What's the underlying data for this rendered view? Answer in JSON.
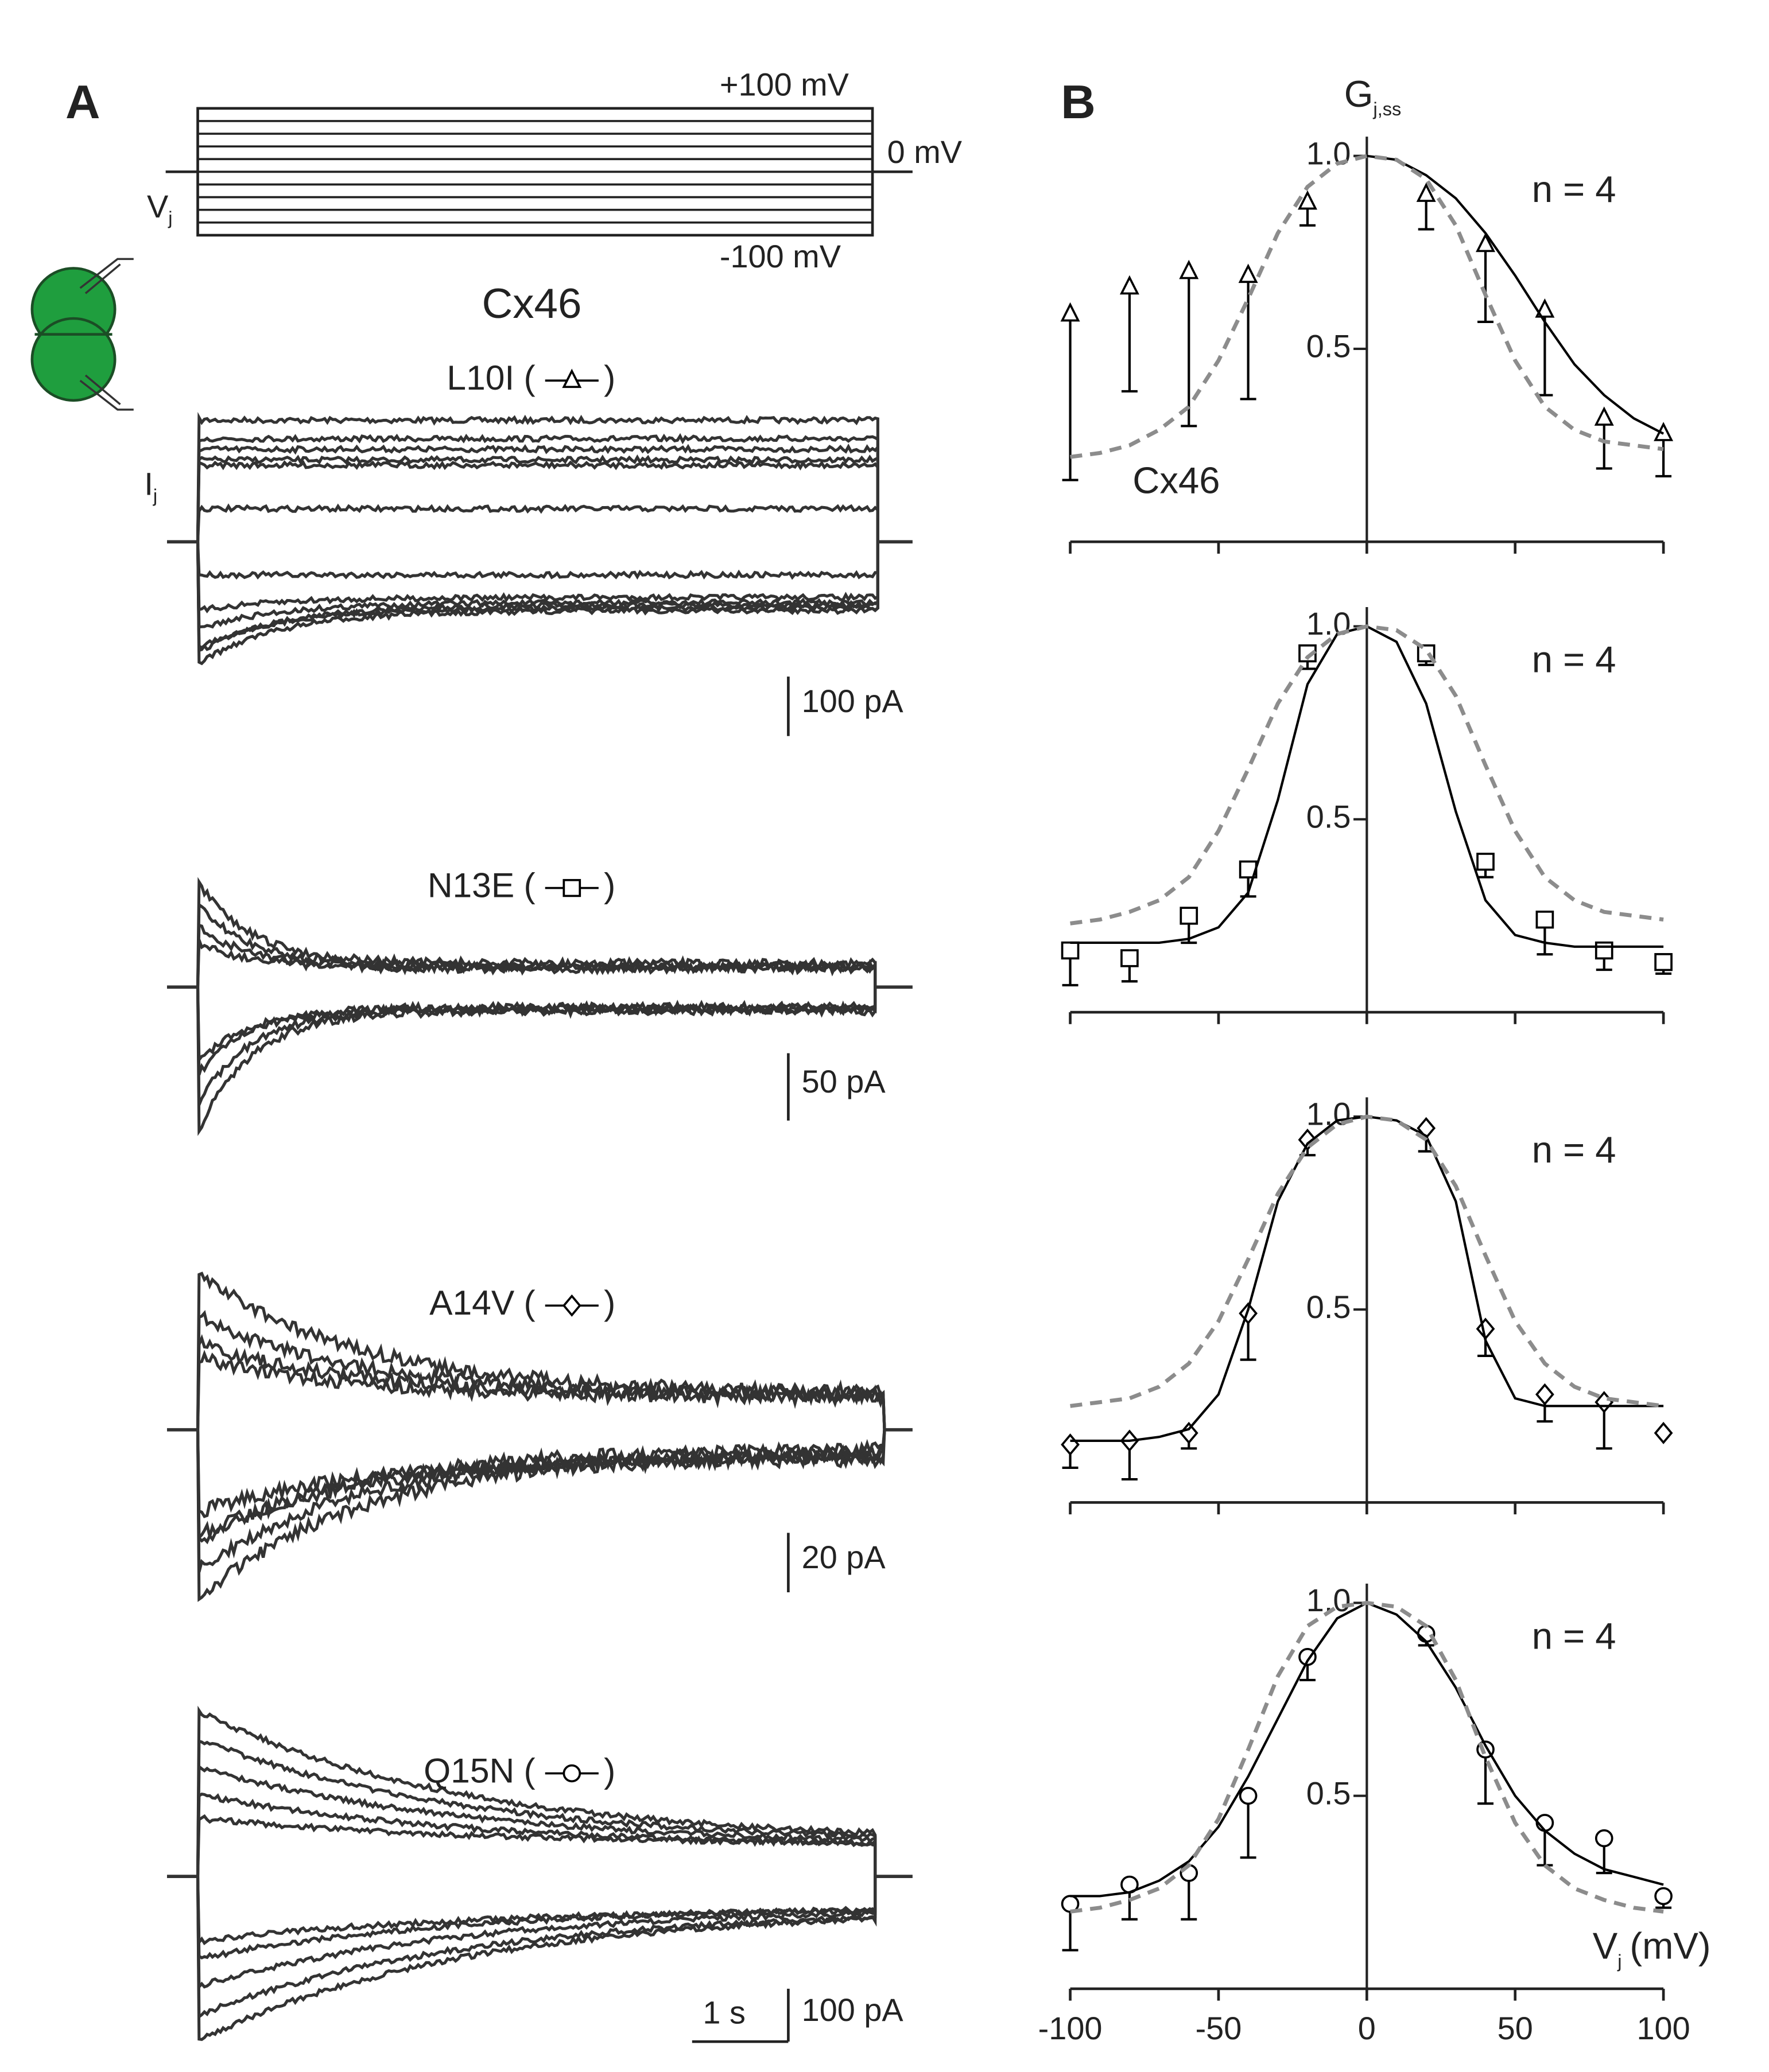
{
  "panel_a": {
    "label": "A",
    "protocol_top": "+100 mV",
    "protocol_zero": "0 mV",
    "protocol_bottom": "-100 mV",
    "v_main": "V",
    "v_sub": "j",
    "title": "Cx46",
    "i_main": "I",
    "i_sub": "j",
    "paren_open": "(",
    "paren_close": ")",
    "current_scale_bars": [
      "100 pA",
      "50 pA",
      "20 pA",
      "100 pA"
    ],
    "time_scale_bar": "1 s"
  },
  "panel_b_label": "B",
  "chart_data": [
    {
      "type": "scatter",
      "y_label": {
        "main": "G",
        "sub": "j,ss"
      },
      "annotation": "n = 4",
      "xlim": [
        -100,
        100
      ],
      "xticks": [
        -100,
        -50,
        0,
        50,
        100
      ],
      "xtick_labels": false,
      "ylim": [
        0,
        1.05
      ],
      "yticks": [
        0.5,
        {
          "value": 1,
          "label": "1.0"
        }
      ],
      "yaxis_at": 0,
      "series": [
        {
          "name": "L10I",
          "marker": "triangle",
          "color": "#000000",
          "x": [
            -100,
            -80,
            -60,
            -40,
            -20,
            20,
            40,
            60,
            80,
            100
          ],
          "values": [
            0.59,
            0.66,
            0.7,
            0.69,
            0.88,
            0.9,
            0.77,
            0.6,
            0.32,
            0.28
          ],
          "errors": [
            0.43,
            0.27,
            0.4,
            0.32,
            0.06,
            0.09,
            0.2,
            0.22,
            0.13,
            0.11
          ]
        },
        {
          "style": "solid",
          "color": "#000000",
          "x": [
            0,
            10,
            20,
            30,
            40,
            50,
            60,
            70,
            80,
            90,
            100
          ],
          "values": [
            1.0,
            0.99,
            0.95,
            0.89,
            0.8,
            0.69,
            0.57,
            0.46,
            0.38,
            0.32,
            0.28
          ]
        },
        {
          "name": "Cx46",
          "style": "dashed",
          "color": "#8c8c8c",
          "x": [
            -100,
            -90,
            -80,
            -70,
            -60,
            -50,
            -40,
            -30,
            -20,
            -10,
            0,
            10,
            20,
            30,
            40,
            50,
            60,
            70,
            80,
            90,
            100
          ],
          "values": [
            0.22,
            0.23,
            0.25,
            0.29,
            0.35,
            0.47,
            0.63,
            0.8,
            0.92,
            0.98,
            1.0,
            0.99,
            0.94,
            0.82,
            0.64,
            0.47,
            0.35,
            0.29,
            0.26,
            0.25,
            0.24
          ]
        }
      ]
    },
    {
      "type": "scatter",
      "annotation": "n = 4",
      "xlim": [
        -100,
        100
      ],
      "xticks": [
        -100,
        -50,
        0,
        50,
        100
      ],
      "xtick_labels": false,
      "ylim": [
        0,
        1.05
      ],
      "yticks": [
        0.5,
        {
          "value": 1,
          "label": "1.0"
        }
      ],
      "yaxis_at": 0,
      "series": [
        {
          "name": "N13E",
          "marker": "square",
          "color": "#000000",
          "x": [
            -100,
            -80,
            -60,
            -40,
            -20,
            20,
            40,
            60,
            80,
            100
          ],
          "values": [
            0.16,
            0.14,
            0.25,
            0.37,
            0.93,
            0.93,
            0.39,
            0.24,
            0.16,
            0.13
          ],
          "errors": [
            0.09,
            0.06,
            0.07,
            0.07,
            0.04,
            0.03,
            0.04,
            0.09,
            0.05,
            0.03
          ]
        },
        {
          "style": "solid",
          "color": "#000000",
          "x": [
            -100,
            -90,
            -80,
            -70,
            -60,
            -50,
            -40,
            -30,
            -20,
            -10,
            0,
            10,
            20,
            30,
            40,
            50,
            60,
            70,
            80,
            90,
            100
          ],
          "values": [
            0.18,
            0.18,
            0.18,
            0.18,
            0.19,
            0.22,
            0.31,
            0.55,
            0.85,
            0.98,
            1.0,
            0.96,
            0.8,
            0.52,
            0.29,
            0.2,
            0.18,
            0.17,
            0.17,
            0.17,
            0.17
          ]
        },
        {
          "style": "dashed",
          "color": "#8c8c8c",
          "x": [
            -100,
            -90,
            -80,
            -70,
            -60,
            -50,
            -40,
            -30,
            -20,
            -10,
            0,
            10,
            20,
            30,
            40,
            50,
            60,
            70,
            80,
            90,
            100
          ],
          "values": [
            0.23,
            0.24,
            0.26,
            0.29,
            0.35,
            0.47,
            0.63,
            0.8,
            0.92,
            0.98,
            1.0,
            0.99,
            0.94,
            0.82,
            0.64,
            0.47,
            0.35,
            0.29,
            0.26,
            0.25,
            0.24
          ]
        }
      ]
    },
    {
      "type": "scatter",
      "annotation": "n = 4",
      "xlim": [
        -100,
        100
      ],
      "xticks": [
        -100,
        -50,
        0,
        50,
        100
      ],
      "xtick_labels": false,
      "ylim": [
        0,
        1.05
      ],
      "yticks": [
        0.5,
        {
          "value": 1,
          "label": "1.0"
        }
      ],
      "yaxis_at": 0,
      "series": [
        {
          "name": "A14V",
          "marker": "diamond",
          "color": "#000000",
          "x": [
            -100,
            -80,
            -60,
            -40,
            -20,
            20,
            40,
            60,
            80,
            100
          ],
          "values": [
            0.15,
            0.16,
            0.18,
            0.49,
            0.94,
            0.97,
            0.45,
            0.28,
            0.26,
            0.18
          ],
          "errors": [
            0.06,
            0.1,
            0.04,
            0.12,
            0.04,
            0.06,
            0.07,
            0.07,
            0.12,
            0
          ]
        },
        {
          "style": "solid",
          "color": "#000000",
          "x": [
            -100,
            -90,
            -80,
            -70,
            -60,
            -50,
            -40,
            -30,
            -20,
            -10,
            0,
            10,
            20,
            30,
            40,
            50,
            60,
            70,
            80,
            90,
            100
          ],
          "values": [
            0.16,
            0.16,
            0.16,
            0.17,
            0.19,
            0.28,
            0.5,
            0.78,
            0.93,
            0.99,
            1.0,
            0.99,
            0.95,
            0.78,
            0.42,
            0.27,
            0.25,
            0.25,
            0.25,
            0.25,
            0.25
          ]
        },
        {
          "style": "dashed",
          "color": "#8c8c8c",
          "x": [
            -100,
            -90,
            -80,
            -70,
            -60,
            -50,
            -40,
            -30,
            -20,
            -10,
            0,
            10,
            20,
            30,
            40,
            50,
            60,
            70,
            80,
            90,
            100
          ],
          "values": [
            0.25,
            0.26,
            0.27,
            0.3,
            0.36,
            0.47,
            0.63,
            0.8,
            0.92,
            0.98,
            1.0,
            0.99,
            0.94,
            0.82,
            0.64,
            0.47,
            0.36,
            0.3,
            0.27,
            0.26,
            0.25
          ]
        }
      ]
    },
    {
      "type": "scatter",
      "annotation": "n = 4",
      "x_label": {
        "main": "V",
        "sub": "j",
        "rest": "(mV)"
      },
      "xlim": [
        -100,
        100
      ],
      "xticks": [
        -100,
        -50,
        0,
        50,
        100
      ],
      "xtick_labels": true,
      "ylim": [
        0,
        1.05
      ],
      "yticks": [
        0.5,
        {
          "value": 1,
          "label": "1.0"
        }
      ],
      "yaxis_at": 0,
      "series": [
        {
          "name": "Q15N",
          "marker": "circle",
          "color": "#000000",
          "x": [
            -100,
            -80,
            -60,
            -40,
            -20,
            20,
            40,
            60,
            80,
            100
          ],
          "values": [
            0.22,
            0.27,
            0.3,
            0.5,
            0.86,
            0.92,
            0.62,
            0.43,
            0.39,
            0.24
          ],
          "errors": [
            0.12,
            0.09,
            0.12,
            0.16,
            0.06,
            0.03,
            0.14,
            0.11,
            0.09,
            0.03
          ]
        },
        {
          "style": "solid",
          "color": "#000000",
          "x": [
            -100,
            -90,
            -80,
            -70,
            -60,
            -50,
            -40,
            -30,
            -20,
            -10,
            0,
            10,
            20,
            30,
            40,
            50,
            60,
            70,
            80,
            90,
            100
          ],
          "values": [
            0.24,
            0.24,
            0.25,
            0.28,
            0.33,
            0.42,
            0.55,
            0.7,
            0.85,
            0.96,
            1.0,
            0.97,
            0.9,
            0.78,
            0.63,
            0.5,
            0.41,
            0.35,
            0.31,
            0.29,
            0.27
          ]
        },
        {
          "style": "dashed",
          "color": "#8c8c8c",
          "x": [
            -100,
            -90,
            -80,
            -70,
            -60,
            -50,
            -40,
            -30,
            -20,
            -10,
            0,
            10,
            20,
            30,
            40,
            50,
            60,
            70,
            80,
            90,
            100
          ],
          "values": [
            0.2,
            0.21,
            0.23,
            0.26,
            0.32,
            0.44,
            0.62,
            0.81,
            0.94,
            0.99,
            1.0,
            0.99,
            0.94,
            0.8,
            0.6,
            0.43,
            0.32,
            0.26,
            0.23,
            0.21,
            0.2
          ]
        }
      ]
    }
  ]
}
